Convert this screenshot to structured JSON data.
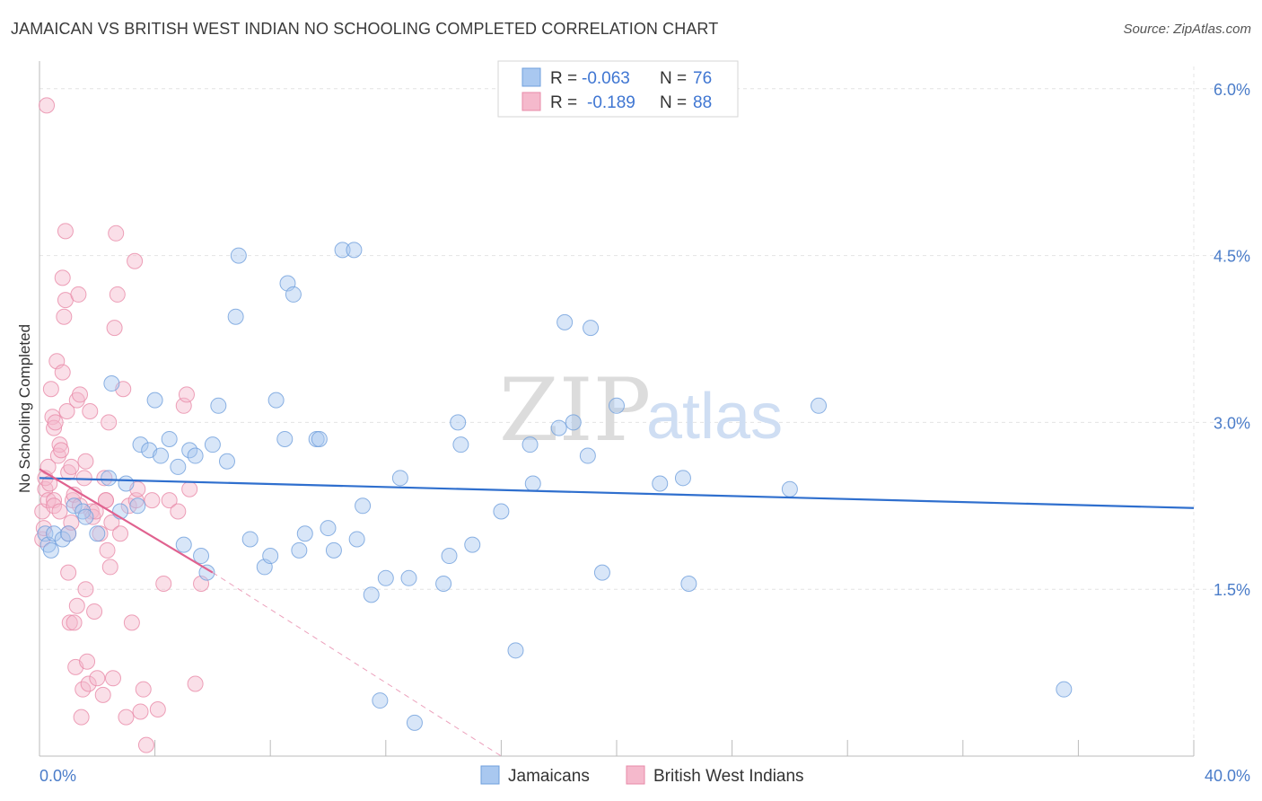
{
  "title": "JAMAICAN VS BRITISH WEST INDIAN NO SCHOOLING COMPLETED CORRELATION CHART",
  "source": "Source: ZipAtlas.com",
  "watermark": {
    "zip": "ZIP",
    "atlas": "atlas"
  },
  "colors": {
    "blue_fill": "#a9c8f0",
    "blue_stroke": "#6f9fdc",
    "blue_line": "#2f6fce",
    "pink_fill": "#f5b9cc",
    "pink_stroke": "#e88aa8",
    "pink_line": "#e0628f",
    "grid": "#e4e4e4",
    "tick_text": "#4a7cc9"
  },
  "legend": {
    "rows": [
      {
        "r_label": "R =",
        "r_value": "-0.063",
        "n_label": "N =",
        "n_value": "76"
      },
      {
        "r_label": "R =",
        "r_value": "-0.189",
        "n_label": "N =",
        "n_value": "88"
      }
    ]
  },
  "chart_data": {
    "type": "scatter",
    "title": "JAMAICAN VS BRITISH WEST INDIAN NO SCHOOLING COMPLETED CORRELATION CHART",
    "xlabel": "",
    "ylabel": "No Schooling Completed",
    "xlim": [
      0,
      40
    ],
    "ylim": [
      0,
      6.2
    ],
    "x_tick_labels": [
      "0.0%",
      "40.0%"
    ],
    "y_ticks": [
      1.5,
      3.0,
      4.5,
      6.0
    ],
    "y_tick_labels": [
      "1.5%",
      "3.0%",
      "4.5%",
      "6.0%"
    ],
    "grid": true,
    "legend_position": "top-center",
    "series": [
      {
        "name": "Jamaicans",
        "r": -0.063,
        "n": 76,
        "trend": {
          "x": [
            0,
            40
          ],
          "y": [
            2.5,
            2.23
          ]
        },
        "points": [
          [
            0.2,
            2.0
          ],
          [
            0.3,
            1.9
          ],
          [
            0.5,
            2.0
          ],
          [
            0.8,
            1.95
          ],
          [
            1.0,
            2.0
          ],
          [
            1.2,
            2.25
          ],
          [
            1.5,
            2.2
          ],
          [
            2.0,
            2.0
          ],
          [
            2.4,
            2.5
          ],
          [
            2.5,
            3.35
          ],
          [
            2.8,
            2.2
          ],
          [
            3.0,
            2.45
          ],
          [
            3.4,
            2.25
          ],
          [
            3.5,
            2.8
          ],
          [
            3.8,
            2.75
          ],
          [
            4.0,
            3.2
          ],
          [
            4.2,
            2.7
          ],
          [
            4.5,
            2.85
          ],
          [
            4.8,
            2.6
          ],
          [
            5.0,
            1.9
          ],
          [
            5.2,
            2.75
          ],
          [
            5.4,
            2.7
          ],
          [
            5.6,
            1.8
          ],
          [
            5.8,
            1.65
          ],
          [
            6.0,
            2.8
          ],
          [
            6.2,
            3.15
          ],
          [
            6.5,
            2.65
          ],
          [
            6.8,
            3.95
          ],
          [
            6.9,
            4.5
          ],
          [
            7.3,
            1.95
          ],
          [
            7.8,
            1.7
          ],
          [
            8.0,
            1.8
          ],
          [
            8.2,
            3.2
          ],
          [
            8.5,
            2.85
          ],
          [
            8.6,
            4.25
          ],
          [
            8.8,
            4.15
          ],
          [
            9.0,
            1.85
          ],
          [
            9.2,
            2.0
          ],
          [
            9.6,
            2.85
          ],
          [
            9.7,
            2.85
          ],
          [
            10.0,
            2.05
          ],
          [
            10.2,
            1.85
          ],
          [
            10.5,
            4.55
          ],
          [
            10.9,
            4.55
          ],
          [
            11.0,
            1.95
          ],
          [
            11.2,
            2.25
          ],
          [
            11.5,
            1.45
          ],
          [
            11.8,
            0.5
          ],
          [
            12.0,
            1.6
          ],
          [
            12.5,
            2.5
          ],
          [
            12.8,
            1.6
          ],
          [
            13.0,
            0.3
          ],
          [
            14.0,
            1.55
          ],
          [
            14.2,
            1.8
          ],
          [
            14.5,
            3.0
          ],
          [
            14.6,
            2.8
          ],
          [
            15.0,
            1.9
          ],
          [
            16.0,
            2.2
          ],
          [
            16.5,
            0.95
          ],
          [
            17.0,
            2.8
          ],
          [
            17.1,
            2.45
          ],
          [
            18.0,
            2.95
          ],
          [
            18.2,
            3.9
          ],
          [
            18.5,
            3.0
          ],
          [
            19.0,
            2.7
          ],
          [
            19.1,
            3.85
          ],
          [
            19.5,
            1.65
          ],
          [
            20.0,
            3.15
          ],
          [
            21.5,
            2.45
          ],
          [
            22.3,
            2.5
          ],
          [
            22.5,
            1.55
          ],
          [
            26.0,
            2.4
          ],
          [
            27.0,
            3.15
          ],
          [
            35.5,
            0.6
          ],
          [
            0.4,
            1.85
          ],
          [
            1.6,
            2.15
          ]
        ]
      },
      {
        "name": "British West Indians",
        "r": -0.189,
        "n": 88,
        "trend": {
          "x": [
            0,
            6.0
          ],
          "y": [
            2.58,
            1.65
          ]
        },
        "trend_dashed": {
          "x": [
            6.0,
            16.0
          ],
          "y": [
            1.65,
            0.0
          ]
        },
        "points": [
          [
            0.1,
            1.95
          ],
          [
            0.1,
            2.2
          ],
          [
            0.15,
            2.05
          ],
          [
            0.2,
            2.4
          ],
          [
            0.2,
            2.5
          ],
          [
            0.3,
            2.6
          ],
          [
            0.3,
            2.3
          ],
          [
            0.35,
            2.45
          ],
          [
            0.4,
            3.3
          ],
          [
            0.45,
            3.05
          ],
          [
            0.5,
            2.95
          ],
          [
            0.5,
            2.3
          ],
          [
            0.55,
            3.0
          ],
          [
            0.6,
            3.55
          ],
          [
            0.65,
            2.7
          ],
          [
            0.7,
            2.8
          ],
          [
            0.75,
            2.75
          ],
          [
            0.8,
            3.45
          ],
          [
            0.8,
            4.3
          ],
          [
            0.85,
            3.95
          ],
          [
            0.9,
            4.1
          ],
          [
            0.9,
            4.72
          ],
          [
            0.95,
            3.1
          ],
          [
            1.0,
            2.55
          ],
          [
            1.0,
            2.0
          ],
          [
            1.0,
            1.65
          ],
          [
            1.05,
            1.2
          ],
          [
            1.1,
            2.6
          ],
          [
            1.15,
            2.3
          ],
          [
            1.2,
            2.35
          ],
          [
            1.2,
            1.2
          ],
          [
            1.25,
            0.8
          ],
          [
            1.3,
            1.35
          ],
          [
            1.3,
            3.2
          ],
          [
            1.35,
            4.15
          ],
          [
            1.4,
            3.25
          ],
          [
            1.45,
            0.35
          ],
          [
            1.5,
            0.6
          ],
          [
            1.55,
            2.5
          ],
          [
            1.6,
            2.65
          ],
          [
            1.6,
            1.5
          ],
          [
            1.65,
            0.85
          ],
          [
            1.7,
            0.65
          ],
          [
            1.75,
            3.1
          ],
          [
            1.8,
            2.2
          ],
          [
            1.85,
            2.15
          ],
          [
            1.9,
            1.3
          ],
          [
            1.95,
            2.2
          ],
          [
            2.0,
            0.7
          ],
          [
            2.1,
            2.0
          ],
          [
            2.2,
            0.55
          ],
          [
            2.25,
            2.5
          ],
          [
            2.3,
            2.3
          ],
          [
            2.35,
            1.85
          ],
          [
            2.4,
            3.0
          ],
          [
            2.45,
            1.7
          ],
          [
            2.5,
            2.1
          ],
          [
            2.55,
            0.7
          ],
          [
            2.6,
            3.85
          ],
          [
            2.65,
            4.7
          ],
          [
            2.7,
            4.15
          ],
          [
            2.8,
            2.0
          ],
          [
            2.9,
            3.3
          ],
          [
            3.0,
            0.35
          ],
          [
            3.1,
            2.25
          ],
          [
            3.2,
            1.2
          ],
          [
            3.3,
            4.45
          ],
          [
            3.35,
            2.3
          ],
          [
            3.4,
            2.4
          ],
          [
            3.5,
            0.4
          ],
          [
            3.6,
            0.6
          ],
          [
            3.7,
            0.1
          ],
          [
            3.9,
            2.3
          ],
          [
            4.1,
            0.42
          ],
          [
            4.3,
            1.55
          ],
          [
            4.5,
            2.3
          ],
          [
            4.8,
            2.2
          ],
          [
            5.0,
            3.15
          ],
          [
            5.1,
            3.25
          ],
          [
            5.2,
            2.4
          ],
          [
            5.4,
            0.65
          ],
          [
            5.6,
            1.55
          ],
          [
            0.5,
            2.25
          ],
          [
            0.7,
            2.2
          ],
          [
            1.1,
            2.1
          ],
          [
            1.4,
            2.25
          ],
          [
            0.25,
            5.85
          ],
          [
            2.3,
            2.3
          ]
        ]
      }
    ]
  },
  "bottom_legend": [
    {
      "label": "Jamaicans"
    },
    {
      "label": "British West Indians"
    }
  ]
}
